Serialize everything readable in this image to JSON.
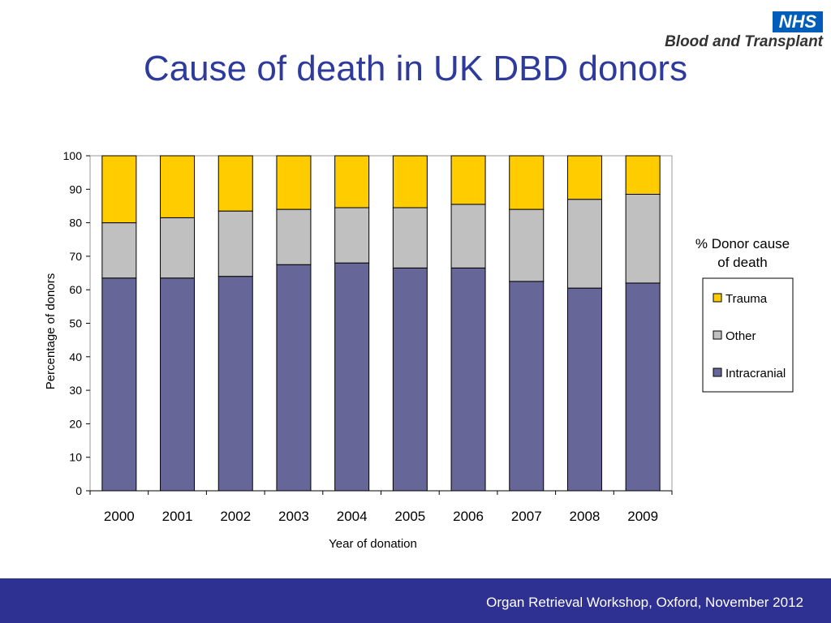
{
  "slide": {
    "title": "Cause of death in UK DBD donors",
    "logo_mark": "NHS",
    "logo_text": "Blood and Transplant",
    "footer": "Organ Retrieval Workshop, Oxford, November 2012"
  },
  "colors": {
    "title": "#2e3a9c",
    "footer_bg": "#2f3192",
    "nhs_blue": "#005EB8"
  },
  "chart_data": {
    "type": "bar",
    "stacked": true,
    "title": "",
    "xlabel": "Year of donation",
    "ylabel": "Percentage of donors",
    "ylim": [
      0,
      100
    ],
    "yticks": [
      0,
      10,
      20,
      30,
      40,
      50,
      60,
      70,
      80,
      90,
      100
    ],
    "grid": false,
    "legend_title": "% Donor cause of death",
    "legend_title_lines": [
      "% Donor cause",
      "of death"
    ],
    "legend_position": "right",
    "categories": [
      "2000",
      "2001",
      "2002",
      "2003",
      "2004",
      "2005",
      "2006",
      "2007",
      "2008",
      "2009"
    ],
    "series": [
      {
        "name": "Intracranial",
        "color": "#666699",
        "values": [
          63.5,
          63.5,
          64,
          67.5,
          68,
          66.5,
          66.5,
          62.5,
          60.5,
          62
        ]
      },
      {
        "name": "Other",
        "color": "#c0c0c0",
        "values": [
          16.5,
          18,
          19.5,
          16.5,
          16.5,
          18,
          19,
          21.5,
          26.5,
          26.5
        ]
      },
      {
        "name": "Trauma",
        "color": "#ffcc00",
        "values": [
          20,
          18.5,
          16.5,
          16,
          15.5,
          15.5,
          14.5,
          16,
          13,
          11.5
        ]
      }
    ],
    "legend_order": [
      "Trauma",
      "Other",
      "Intracranial"
    ]
  }
}
